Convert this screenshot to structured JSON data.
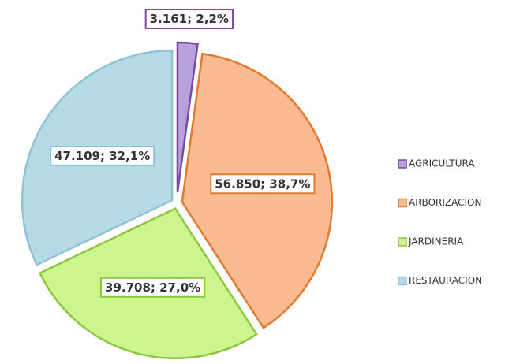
{
  "chart_data": {
    "type": "pie",
    "categories": [
      "AGRICULTURA",
      "ARBORIZACION",
      "JARDINERIA",
      "RESTAURACION"
    ],
    "values": [
      3161,
      56850,
      39708,
      47109
    ],
    "value_labels": [
      "3.161; 2,2%",
      "56.850; 38,7%",
      "39.708; 27,0%",
      "47.109; 32,1%"
    ],
    "colors": [
      "#b7a1dc",
      "#f9bb8f",
      "#cdf58e",
      "#b6dbe7"
    ],
    "edge_colors": [
      "#7b4a9c",
      "#e07b32",
      "#8cc63f",
      "#8fc3d3"
    ],
    "legend": "right"
  }
}
